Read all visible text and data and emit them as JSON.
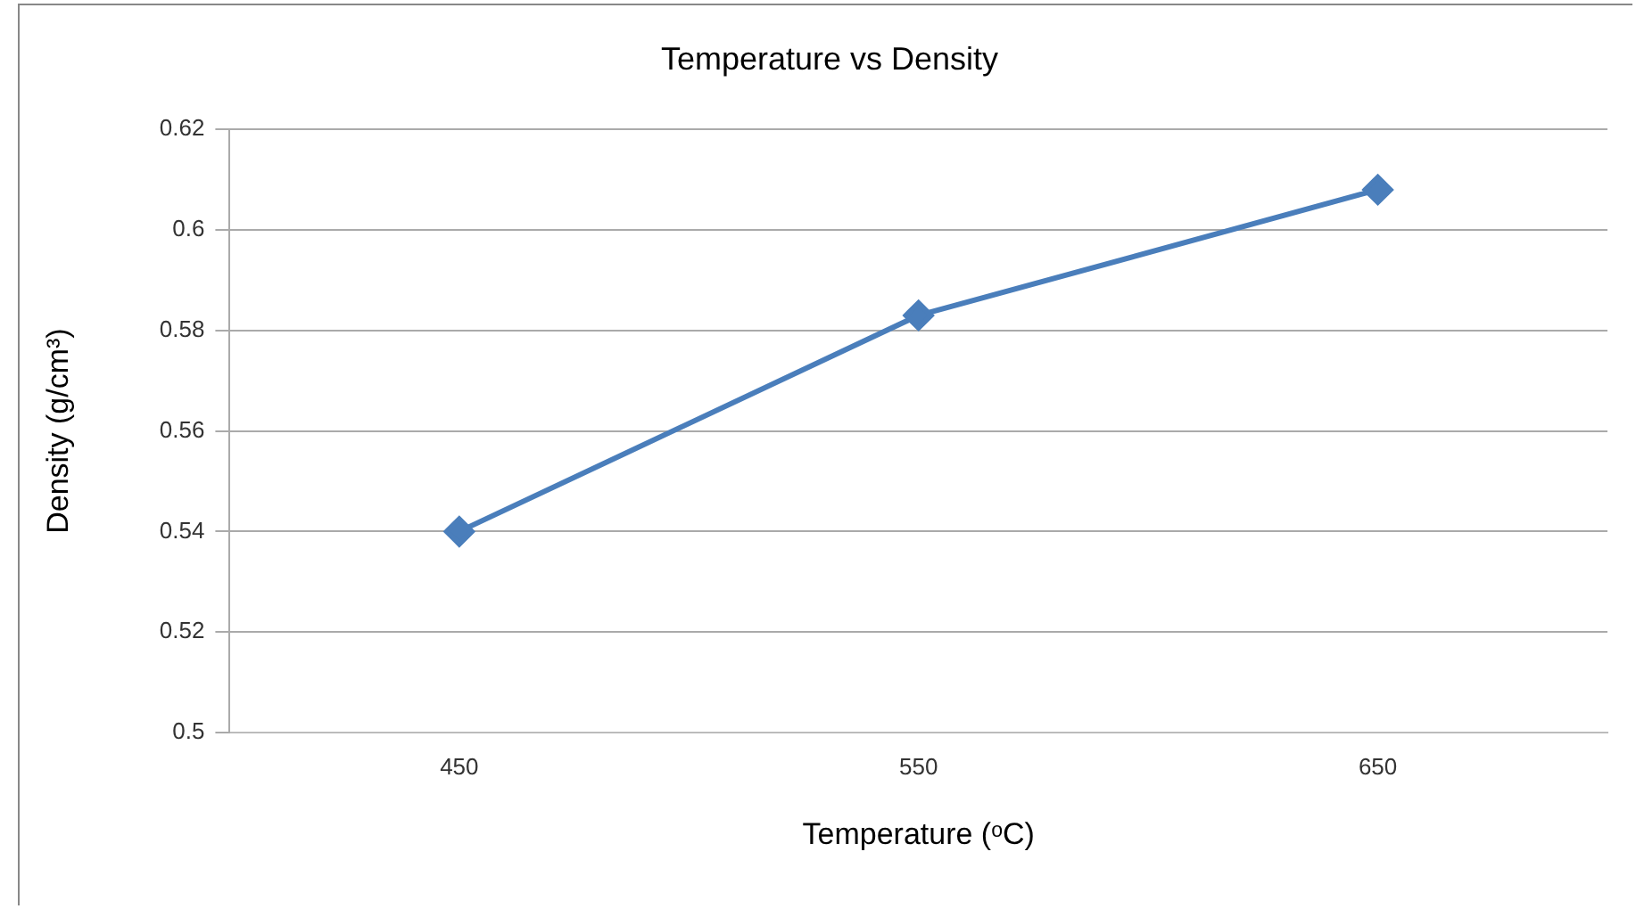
{
  "chart_data": {
    "type": "line",
    "title": "Temperature vs Density",
    "xlabel": "Temperature (ᵒC)",
    "ylabel": "Density (g/cm³)",
    "categories": [
      "450",
      "550",
      "650"
    ],
    "series": [
      {
        "color": "#4a7ebb",
        "values": [
          0.54,
          0.583,
          0.608
        ]
      }
    ],
    "ylim": [
      0.5,
      0.62
    ],
    "yticks": [
      0.5,
      0.52,
      0.54,
      0.56,
      0.58,
      0.6,
      0.62
    ],
    "grid": "y",
    "marker": "diamond",
    "line_style": "solid",
    "legend": false
  }
}
